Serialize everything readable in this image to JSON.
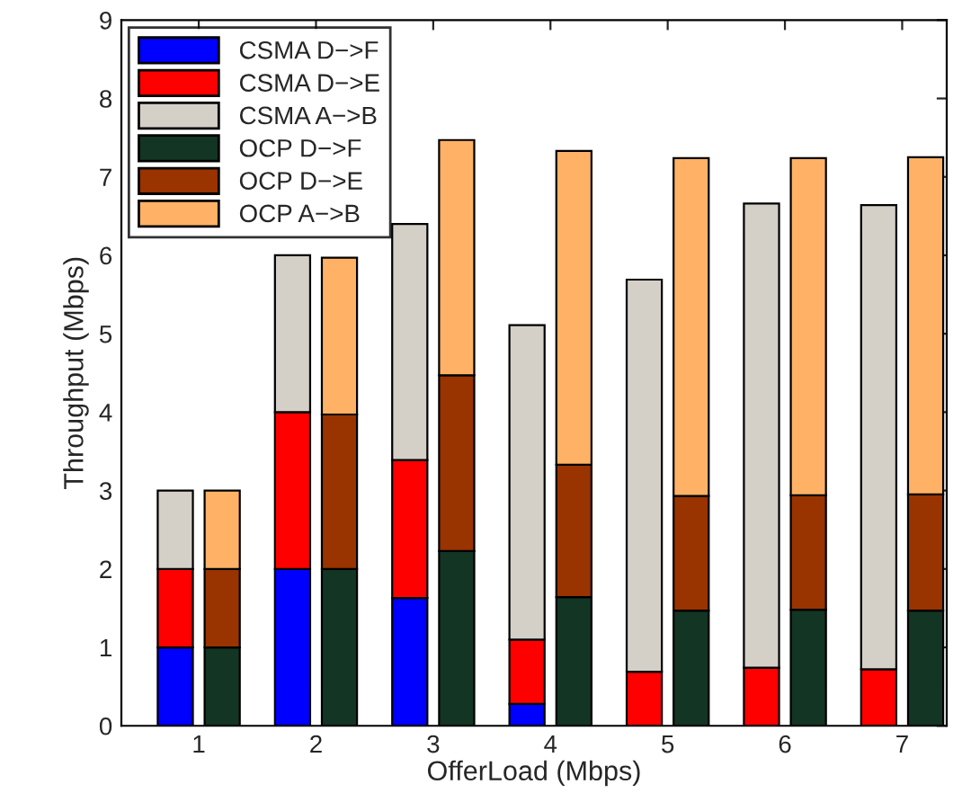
{
  "chart_data": {
    "type": "bar",
    "xlabel": "OfferLoad (Mbps)",
    "ylabel": "Throughput (Mbps)",
    "xlim": [
      0.34,
      7.38
    ],
    "xticks": [
      1,
      2,
      3,
      4,
      5,
      6,
      7
    ],
    "series": [
      {
        "name": "CSMA D−>F",
        "x": [
          0.8,
          1.8,
          2.8,
          3.8
        ],
        "color": "#0000ff",
        "values": [
          1.0,
          2.0,
          1.63,
          0.28
        ],
        "base": [
          0,
          0,
          0,
          0
        ]
      },
      {
        "name": "CSMA D−>E",
        "x": [
          0.8,
          1.8,
          2.8,
          3.8,
          4.8,
          5.8,
          6.8
        ],
        "color": "#ff0000",
        "values": [
          1.0,
          2.0,
          1.76,
          0.82,
          0.69,
          0.74,
          0.72
        ],
        "base": [
          1.0,
          2.0,
          1.63,
          0.28,
          0,
          0,
          0
        ]
      },
      {
        "name": "CSMA A−>B",
        "x": [
          0.8,
          1.8,
          2.8,
          3.8,
          4.8,
          5.8,
          6.8
        ],
        "color": "#d4d0c8",
        "values": [
          1.0,
          2.0,
          3.01,
          4.01,
          5.0,
          5.92,
          5.92
        ],
        "base": [
          2.0,
          4.0,
          3.39,
          1.1,
          0.69,
          0.74,
          0.72
        ]
      },
      {
        "name": "OCP D−>F",
        "x": [
          1.2,
          2.2,
          3.2,
          4.2,
          5.2,
          6.2,
          7.2
        ],
        "color": "#133524",
        "values": [
          1.0,
          2.0,
          2.23,
          1.64,
          1.47,
          1.48,
          1.47
        ],
        "base": [
          0,
          0,
          0,
          0,
          0,
          0,
          0
        ]
      },
      {
        "name": "OCP D−>E",
        "x": [
          1.2,
          2.2,
          3.2,
          4.2,
          5.2,
          6.2,
          7.2
        ],
        "color": "#993300",
        "values": [
          1.0,
          1.97,
          2.24,
          1.69,
          1.46,
          1.46,
          1.48
        ],
        "base": [
          1.0,
          2.0,
          2.23,
          1.64,
          1.47,
          1.48,
          1.47
        ]
      },
      {
        "name": "OCP A−>B",
        "x": [
          1.2,
          2.2,
          3.2,
          4.2,
          5.2,
          6.2,
          7.2
        ],
        "color": "#ffb266",
        "values": [
          1.0,
          2.0,
          3.0,
          4.0,
          4.31,
          4.3,
          4.3
        ],
        "base": [
          2.0,
          3.97,
          4.47,
          3.33,
          2.93,
          2.94,
          2.95
        ]
      }
    ],
    "ylim": [
      0,
      9
    ],
    "yticks": [
      0,
      1,
      2,
      3,
      4,
      5,
      6,
      7,
      8,
      9
    ],
    "grid": false,
    "legend": "top left"
  }
}
